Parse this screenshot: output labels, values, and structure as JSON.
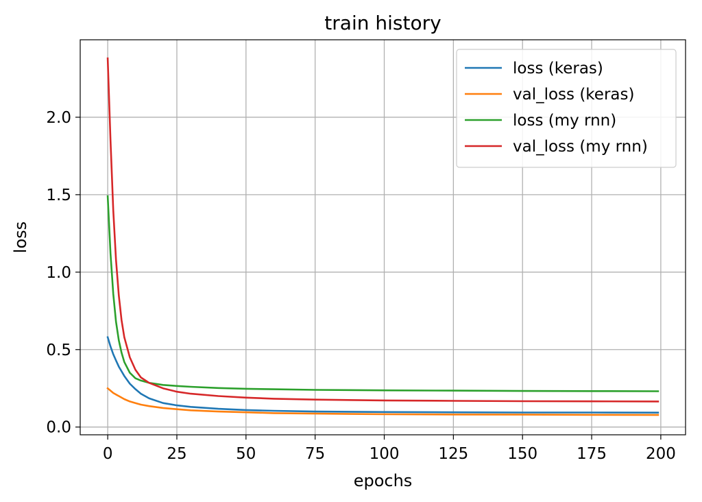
{
  "chart_data": {
    "type": "line",
    "title": "train history",
    "xlabel": "epochs",
    "ylabel": "loss",
    "xlim": [
      -9.95,
      208.95
    ],
    "ylim": [
      -0.05,
      2.5
    ],
    "xticks": [
      0,
      25,
      50,
      75,
      100,
      125,
      150,
      175,
      200
    ],
    "yticks": [
      0.0,
      0.5,
      1.0,
      1.5,
      2.0
    ],
    "xtick_labels": [
      "0",
      "25",
      "50",
      "75",
      "100",
      "125",
      "150",
      "175",
      "200"
    ],
    "ytick_labels": [
      "0.0",
      "0.5",
      "1.0",
      "1.5",
      "2.0"
    ],
    "grid": true,
    "legend_position": "top-right",
    "x": [
      0,
      1,
      2,
      3,
      4,
      5,
      6,
      8,
      10,
      12,
      15,
      20,
      25,
      30,
      40,
      50,
      60,
      75,
      100,
      125,
      150,
      175,
      199
    ],
    "series": [
      {
        "name": "loss (keras)",
        "color": "#1f77b4",
        "values": [
          0.58,
          0.52,
          0.47,
          0.43,
          0.39,
          0.36,
          0.33,
          0.28,
          0.245,
          0.215,
          0.185,
          0.155,
          0.14,
          0.13,
          0.118,
          0.11,
          0.105,
          0.1,
          0.097,
          0.095,
          0.094,
          0.094,
          0.093
        ]
      },
      {
        "name": "val_loss (keras)",
        "color": "#ff7f0e",
        "values": [
          0.25,
          0.235,
          0.22,
          0.21,
          0.2,
          0.19,
          0.18,
          0.165,
          0.155,
          0.145,
          0.135,
          0.123,
          0.115,
          0.108,
          0.1,
          0.095,
          0.09,
          0.087,
          0.083,
          0.081,
          0.08,
          0.079,
          0.078
        ]
      },
      {
        "name": "loss (my rnn)",
        "color": "#2ca02c",
        "values": [
          1.49,
          1.12,
          0.86,
          0.68,
          0.56,
          0.48,
          0.42,
          0.35,
          0.315,
          0.3,
          0.285,
          0.272,
          0.265,
          0.26,
          0.252,
          0.247,
          0.244,
          0.24,
          0.237,
          0.235,
          0.233,
          0.232,
          0.231
        ]
      },
      {
        "name": "val_loss (my rnn)",
        "color": "#d62728",
        "values": [
          2.38,
          1.85,
          1.4,
          1.08,
          0.85,
          0.69,
          0.58,
          0.45,
          0.37,
          0.32,
          0.285,
          0.25,
          0.228,
          0.215,
          0.2,
          0.19,
          0.183,
          0.177,
          0.172,
          0.169,
          0.167,
          0.166,
          0.165
        ]
      }
    ]
  }
}
